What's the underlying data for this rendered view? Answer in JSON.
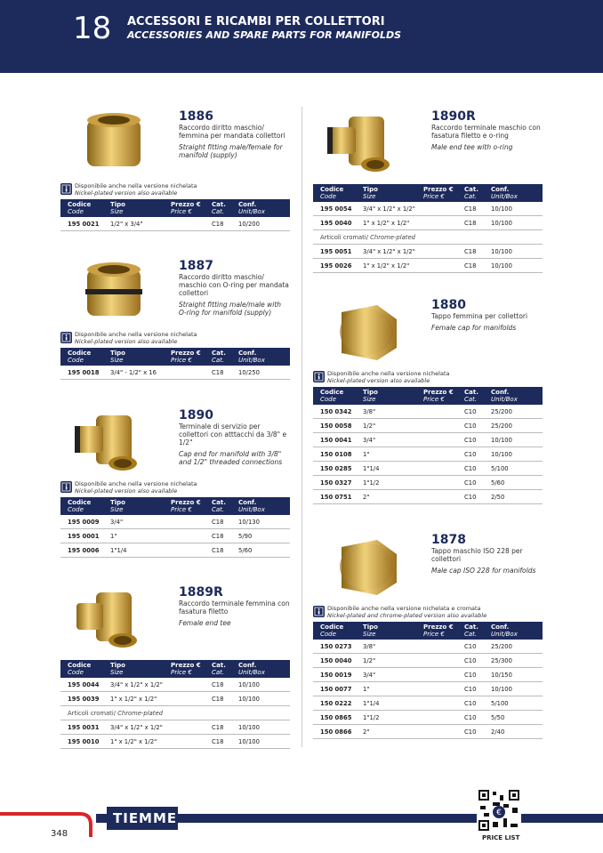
{
  "header": {
    "number": "18",
    "title_it": "ACCESSORI E RICAMBI PER COLLETTORI",
    "title_en": "ACCESSORIES AND SPARE PARTS FOR MANIFOLDS"
  },
  "table_header": [
    {
      "it": "Codice",
      "en": "Code"
    },
    {
      "it": "Tipo",
      "en": "Size"
    },
    {
      "it": "Prezzo €",
      "en": "Price €"
    },
    {
      "it": "Cat.",
      "en": "Cat."
    },
    {
      "it": "Conf.",
      "en": "Unit/Box"
    }
  ],
  "products": [
    {
      "code": "1886",
      "desc_it": "Raccordo diritto maschio/ femmina per mandata collettori",
      "desc_en": "Straight fitting male/female for manifold (supply)",
      "note_it": "Disponibile anche nella versione nichelata",
      "note_en": "Nickel-plated version also available",
      "rows": [
        {
          "code": "195 0021",
          "size": "1/2\" x 3/4\"",
          "cat": "C18",
          "conf": "10/200"
        }
      ]
    },
    {
      "code": "1887",
      "desc_it": "Raccordo diritto maschio/ maschio con O-ring per mandata collettori",
      "desc_en": "Straight fitting male/male with O-ring for manifold (supply)",
      "note_it": "Disponibile anche nella versione nichelata",
      "note_en": "Nickel-plated version also available",
      "rows": [
        {
          "code": "195 0018",
          "size": "3/4\" - 1/2\" x 16",
          "cat": "C18",
          "conf": "10/250"
        }
      ]
    },
    {
      "code": "1890",
      "desc_it": "Terminale di servizio per collettori con atttacchi da 3/8\" e 1/2\"",
      "desc_en": "Cap end for manifold with 3/8\" and 1/2\" threaded connections",
      "note_it": "Disponibile anche nella versione nichelata",
      "note_en": "Nickel-plated version also available",
      "rows": [
        {
          "code": "195 0009",
          "size": "3/4\"",
          "cat": "C18",
          "conf": "10/130"
        },
        {
          "code": "195 0001",
          "size": "1\"",
          "cat": "C18",
          "conf": "5/90"
        },
        {
          "code": "195 0006",
          "size": "1\"1/4",
          "cat": "C18",
          "conf": "5/60"
        }
      ]
    },
    {
      "code": "1889R",
      "desc_it": "Raccordo terminale femmina con fasatura filetto",
      "desc_en": "Female end tee",
      "rows": [
        {
          "code": "195 0044",
          "size": "3/4\" x 1/2\" x 1/2\"",
          "cat": "C18",
          "conf": "10/100"
        },
        {
          "code": "195 0039",
          "size": "1\" x 1/2\" x 1/2\"",
          "cat": "C18",
          "conf": "10/100"
        },
        {
          "section_it": "Articoli cromati/",
          "section_en": "Chrome-plated"
        },
        {
          "code": "195 0031",
          "size": "3/4\" x 1/2\" x 1/2\"",
          "cat": "C18",
          "conf": "10/100"
        },
        {
          "code": "195 0010",
          "size": "1\" x 1/2\" x 1/2\"",
          "cat": "C18",
          "conf": "10/100"
        }
      ]
    },
    {
      "code": "1890R",
      "desc_it": "Raccordo terminale maschio con fasatura filetto e o-ring",
      "desc_en": "Male end tee with o-ring",
      "rows": [
        {
          "code": "195 0054",
          "size": "3/4\" x 1/2\" x 1/2\"",
          "cat": "C18",
          "conf": "10/100"
        },
        {
          "code": "195 0040",
          "size": "1\" x 1/2\" x 1/2\"",
          "cat": "C18",
          "conf": "10/100"
        },
        {
          "section_it": "Articoli cromati/",
          "section_en": "Chrome-plated"
        },
        {
          "code": "195 0051",
          "size": "3/4\" x 1/2\" x 1/2\"",
          "cat": "C18",
          "conf": "10/100"
        },
        {
          "code": "195 0026",
          "size": "1\" x 1/2\" x 1/2\"",
          "cat": "C18",
          "conf": "10/100"
        }
      ]
    },
    {
      "code": "1880",
      "desc_it": "Tappo femmina per collettori",
      "desc_en": "Female cap for manifolds",
      "note_it": "Disponibile anche nella versione nichelata",
      "note_en": "Nickel-plated version also available",
      "rows": [
        {
          "code": "150 0342",
          "size": "3/8\"",
          "cat": "C10",
          "conf": "25/200"
        },
        {
          "code": "150 0058",
          "size": "1/2\"",
          "cat": "C10",
          "conf": "25/200"
        },
        {
          "code": "150 0041",
          "size": "3/4\"",
          "cat": "C10",
          "conf": "10/100"
        },
        {
          "code": "150 0108",
          "size": "1\"",
          "cat": "C10",
          "conf": "10/100"
        },
        {
          "code": "150 0285",
          "size": "1\"1/4",
          "cat": "C10",
          "conf": "5/100"
        },
        {
          "code": "150 0327",
          "size": "1\"1/2",
          "cat": "C10",
          "conf": "5/60"
        },
        {
          "code": "150 0751",
          "size": "2\"",
          "cat": "C10",
          "conf": "2/50"
        }
      ]
    },
    {
      "code": "1878",
      "desc_it": "Tappo maschio ISO 228 per collettori",
      "desc_en": "Male cap ISO 228 for manifolds",
      "note_it": "Disponibile anche nella versione nichelata e cromata",
      "note_en": "Nickel-plated and chrome-plated version also available",
      "rows": [
        {
          "code": "150 0273",
          "size": "3/8\"",
          "cat": "C10",
          "conf": "25/200"
        },
        {
          "code": "150 0040",
          "size": "1/2\"",
          "cat": "C10",
          "conf": "25/300"
        },
        {
          "code": "150 0019",
          "size": "3/4\"",
          "cat": "C10",
          "conf": "10/150"
        },
        {
          "code": "150 0077",
          "size": "1\"",
          "cat": "C10",
          "conf": "10/100"
        },
        {
          "code": "150 0222",
          "size": "1\"1/4",
          "cat": "C10",
          "conf": "5/100"
        },
        {
          "code": "150 0865",
          "size": "1\"1/2",
          "cat": "C10",
          "conf": "5/50"
        },
        {
          "code": "150 0866",
          "size": "2\"",
          "cat": "C10",
          "conf": "2/40"
        }
      ]
    }
  ],
  "footer": {
    "brand": "TIEMME",
    "page": "348",
    "qr_label": "PRICE LIST"
  }
}
